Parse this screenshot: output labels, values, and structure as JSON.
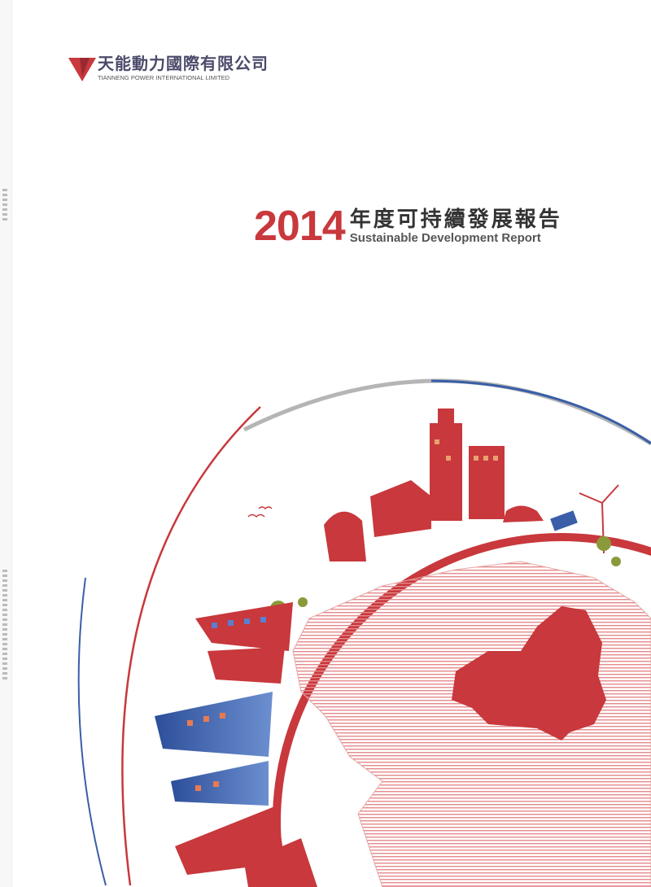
{
  "company": {
    "name_cn": "天能動力國際有限公司",
    "name_en": "TIANNENG POWER INTERNATIONAL LIMITED"
  },
  "report": {
    "year": "2014",
    "title_cn": "年度可持續發展報告",
    "title_en": "Sustainable Development Report"
  },
  "colors": {
    "brand_red": "#c8383c",
    "accent_blue": "#3a5ea8",
    "ring_grey": "#b5b5b5"
  }
}
